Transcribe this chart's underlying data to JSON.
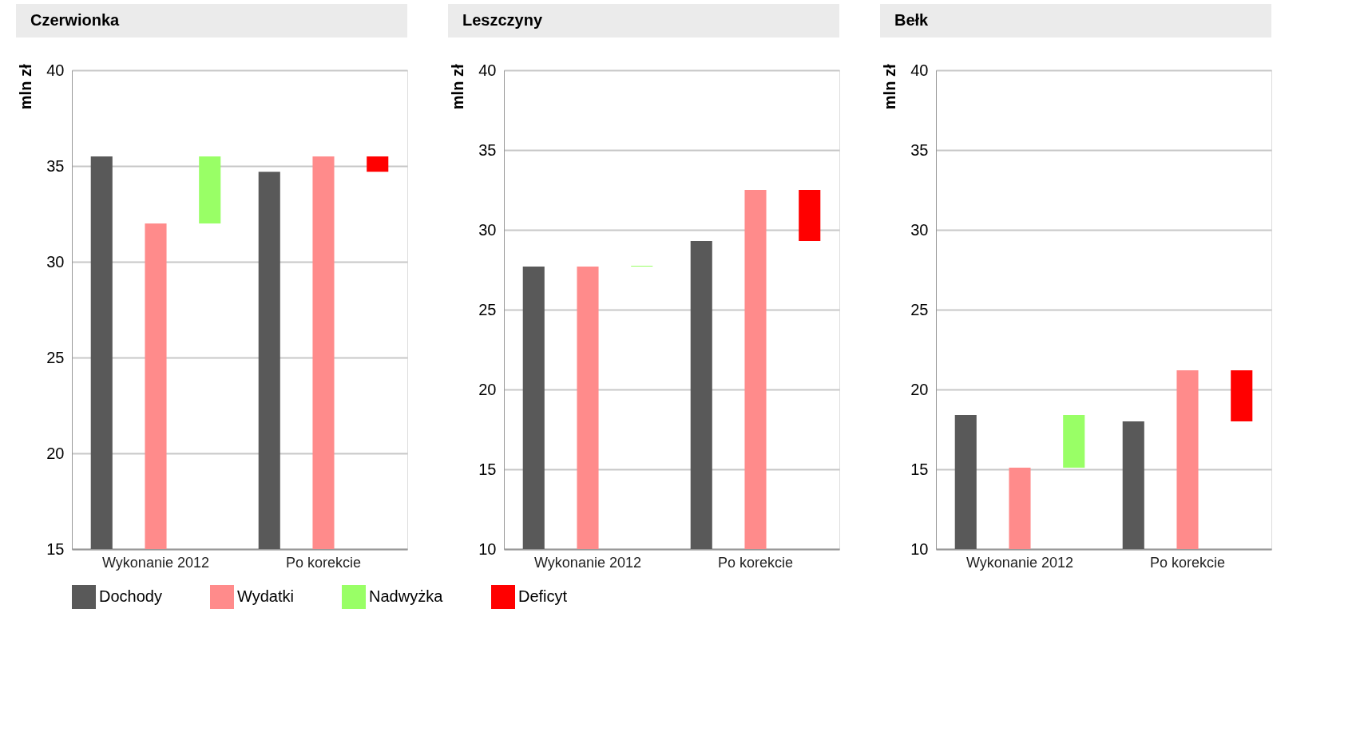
{
  "chart_data": [
    {
      "type": "bar",
      "title": "Czerwionka",
      "ylabel": "mln zł",
      "categories": [
        "Wykonanie 2012",
        "Po korekcie"
      ],
      "ylim": [
        15,
        40
      ],
      "yticks": [
        15,
        20,
        25,
        30,
        35,
        40
      ],
      "grid": "y",
      "legend": "bottom",
      "series": [
        {
          "name": "Dochody",
          "color": "#595959",
          "values": [
            35.5,
            34.7
          ]
        },
        {
          "name": "Wydatki",
          "color": "#ff8b8b",
          "values": [
            32.0,
            35.5
          ]
        },
        {
          "name": "Nadwyżka",
          "color": "#99ff66",
          "values": [
            3.5,
            null
          ],
          "base": [
            32.0,
            null
          ]
        },
        {
          "name": "Deficyt",
          "color": "#ff0000",
          "values": [
            null,
            0.8
          ],
          "base": [
            null,
            34.7
          ]
        }
      ]
    },
    {
      "type": "bar",
      "title": "Leszczyny",
      "ylabel": "mln zł",
      "categories": [
        "Wykonanie 2012",
        "Po korekcie"
      ],
      "ylim": [
        10,
        40
      ],
      "yticks": [
        10,
        15,
        20,
        25,
        30,
        35,
        40
      ],
      "grid": "y",
      "legend": "bottom",
      "series": [
        {
          "name": "Dochody",
          "color": "#595959",
          "values": [
            27.7,
            29.3
          ]
        },
        {
          "name": "Wydatki",
          "color": "#ff8b8b",
          "values": [
            27.7,
            32.5
          ]
        },
        {
          "name": "Nadwyżka",
          "color": "#99ff66",
          "values": [
            0.05,
            null
          ],
          "base": [
            27.7,
            null
          ]
        },
        {
          "name": "Deficyt",
          "color": "#ff0000",
          "values": [
            null,
            3.2
          ],
          "base": [
            null,
            29.3
          ]
        }
      ]
    },
    {
      "type": "bar",
      "title": "Bełk",
      "ylabel": "mln zł",
      "categories": [
        "Wykonanie 2012",
        "Po korekcie"
      ],
      "ylim": [
        10,
        40
      ],
      "yticks": [
        10,
        15,
        20,
        25,
        30,
        35,
        40
      ],
      "grid": "y",
      "legend": "bottom",
      "series": [
        {
          "name": "Dochody",
          "color": "#595959",
          "values": [
            18.4,
            18.0
          ]
        },
        {
          "name": "Wydatki",
          "color": "#ff8b8b",
          "values": [
            15.1,
            21.2
          ]
        },
        {
          "name": "Nadwyżka",
          "color": "#99ff66",
          "values": [
            3.3,
            null
          ],
          "base": [
            15.1,
            null
          ]
        },
        {
          "name": "Deficyt",
          "color": "#ff0000",
          "values": [
            null,
            3.2
          ],
          "base": [
            null,
            18.0
          ]
        }
      ]
    }
  ]
}
